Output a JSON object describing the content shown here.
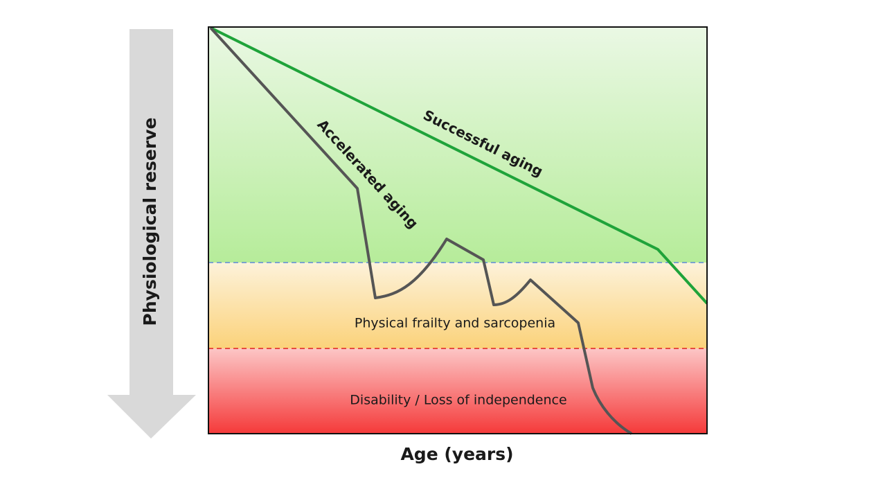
{
  "axes": {
    "x_label": "Age (years)",
    "y_label": "Physiological reserve"
  },
  "curves": {
    "successful": "Successful aging",
    "accelerated": "Accelerated aging"
  },
  "zones": {
    "frailty": "Physical frailty and sarcopenia",
    "disability": "Disability / Loss of independence"
  }
}
